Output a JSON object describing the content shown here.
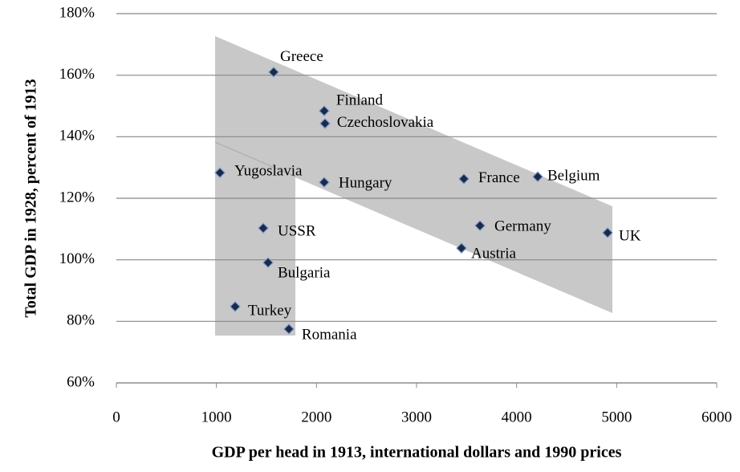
{
  "chart_data": {
    "type": "scatter",
    "x_label": "GDP per head in 1913, international dollars and 1990 prices",
    "y_label": "Total GDP in 1928, percent of 1913",
    "labels": [
      "Greece",
      "Finland",
      "Czechoslovakia",
      "Yugoslavia",
      "Hungary",
      "France",
      "Belgium",
      "Germany",
      "UK",
      "Austria",
      "USSR",
      "Bulgaria",
      "Turkey",
      "Romania"
    ],
    "x": [
      1572,
      2077,
      2085,
      1035,
      2077,
      3473,
      4211,
      3634,
      4909,
      3449,
      1468,
      1516,
      1187,
      1724
    ],
    "y": [
      161,
      148.4,
      144.3,
      128.3,
      125.2,
      126.3,
      127.0,
      111.1,
      108.8,
      103.8,
      110.3,
      99.1,
      84.8,
      77.5
    ],
    "color": "#1b2a47",
    "xlim": [
      0,
      6000
    ],
    "xticks": [
      0,
      1000,
      2000,
      3000,
      4000,
      5000,
      6000
    ],
    "ylim": [
      60,
      180
    ],
    "yticks": [
      {
        "value": 60,
        "label": "60%"
      },
      {
        "value": 80,
        "label": "80%"
      },
      {
        "value": 100,
        "label": "100%"
      },
      {
        "value": 120,
        "label": "120%"
      },
      {
        "value": 140,
        "label": "140%"
      },
      {
        "value": 160,
        "label": "160%"
      },
      {
        "value": 180,
        "label": "180%"
      }
    ],
    "grid": true
  }
}
